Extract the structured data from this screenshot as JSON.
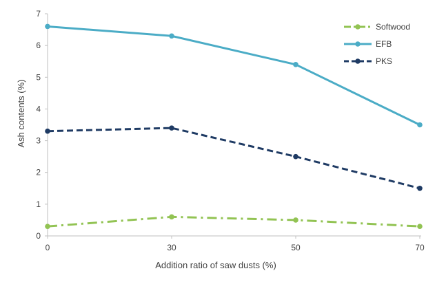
{
  "chart_data": {
    "type": "line",
    "title": "",
    "xlabel": "Addition ratio of saw dusts (%)",
    "ylabel": "Ash contents (%)",
    "x": [
      0,
      30,
      50,
      70
    ],
    "x_tick_labels": [
      "0",
      "30",
      "50",
      "70"
    ],
    "x_scale": "categorical",
    "ylim": [
      0,
      7
    ],
    "y_ticks": [
      0,
      1,
      2,
      3,
      4,
      5,
      6,
      7
    ],
    "y_tick_labels": [
      "0",
      "1",
      "2",
      "3",
      "4",
      "5",
      "6",
      "7"
    ],
    "grid": false,
    "legend_position": "top-right",
    "series": [
      {
        "name": "Softwood",
        "values": [
          0.3,
          0.6,
          0.5,
          0.3
        ],
        "color": "#92c353",
        "line_style": "dash-dot"
      },
      {
        "name": "EFB",
        "values": [
          6.6,
          6.3,
          5.4,
          3.5
        ],
        "color": "#4bacc6",
        "line_style": "solid"
      },
      {
        "name": "PKS",
        "values": [
          3.3,
          3.4,
          2.5,
          1.5
        ],
        "color": "#1f3b64",
        "line_style": "dashed"
      }
    ]
  }
}
